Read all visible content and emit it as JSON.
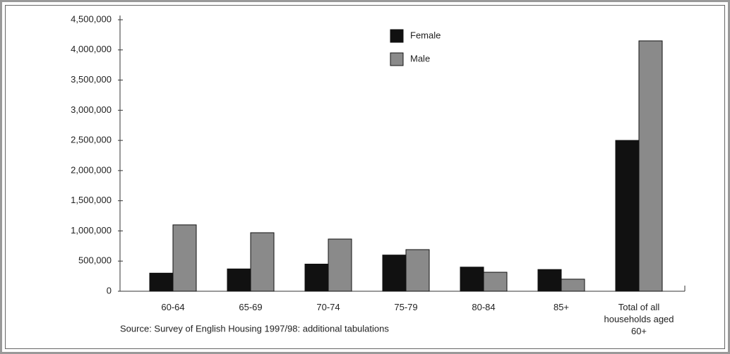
{
  "chart_data": {
    "type": "bar",
    "categories": [
      "60-64",
      "65-69",
      "70-74",
      "75-79",
      "80-84",
      "85+",
      "Total of all households aged 60+"
    ],
    "series": [
      {
        "name": "Female",
        "color": "#111111",
        "values": [
          300000,
          370000,
          450000,
          600000,
          400000,
          360000,
          2500000
        ]
      },
      {
        "name": "Male",
        "color": "#8a8a8a",
        "values": [
          1100000,
          970000,
          865000,
          690000,
          315000,
          200000,
          4150000
        ]
      }
    ],
    "ylim": [
      0,
      4500000
    ],
    "yticks": [
      0,
      {
        "value": 500000,
        "label": "500,000"
      },
      {
        "value": 1000000,
        "label": "1,000,000"
      },
      {
        "value": 1500000,
        "label": "1,500,000"
      },
      {
        "value": 2000000,
        "label": "2,000,000"
      },
      {
        "value": 2500000,
        "label": "2,500,000"
      },
      {
        "value": 3000000,
        "label": "3,000,000"
      },
      {
        "value": 3500000,
        "label": "3,500,000"
      },
      {
        "value": 4000000,
        "label": "4,000,000"
      },
      {
        "value": 4500000,
        "label": "4,500,000"
      }
    ],
    "note": "Source: Survey of English Housing 1997/98: additional tabulations"
  }
}
